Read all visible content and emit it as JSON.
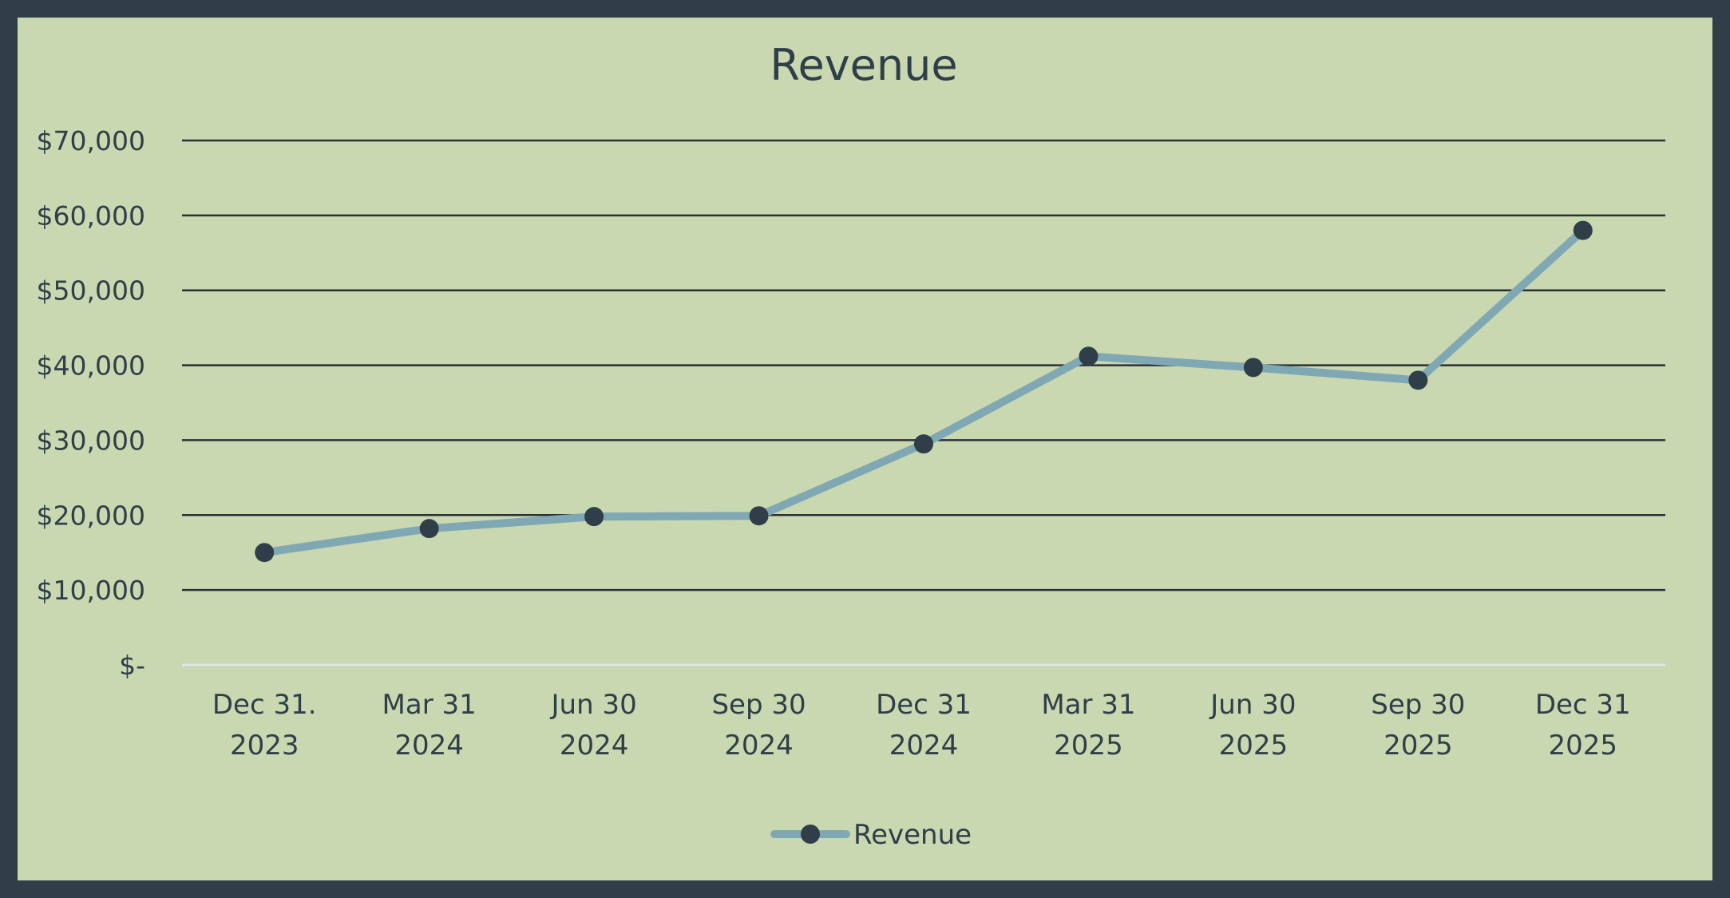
{
  "chart_data": {
    "type": "line",
    "title": "Revenue",
    "xlabel": "",
    "ylabel": "",
    "ylim": [
      0,
      70000
    ],
    "yticks": [
      0,
      10000,
      20000,
      30000,
      40000,
      50000,
      60000,
      70000
    ],
    "ytick_labels": [
      "$-",
      "$10,000",
      "$20,000",
      "$30,000",
      "$40,000",
      "$50,000",
      "$60,000",
      "$70,000"
    ],
    "categories": [
      [
        "Dec 31.",
        "2023"
      ],
      [
        "Mar 31",
        "2024"
      ],
      [
        "Jun 30",
        "2024"
      ],
      [
        "Sep 30",
        "2024"
      ],
      [
        "Dec 31",
        "2024"
      ],
      [
        "Mar 31",
        "2025"
      ],
      [
        "Jun 30",
        "2025"
      ],
      [
        "Sep 30",
        "2025"
      ],
      [
        "Dec 31",
        "2025"
      ]
    ],
    "series": [
      {
        "name": "Revenue",
        "values": [
          15000,
          18200,
          19800,
          19900,
          29500,
          41200,
          39700,
          38000,
          58000
        ]
      }
    ],
    "grid": true,
    "legend": "bottom",
    "colors": {
      "background": "#c9d8b0",
      "frame": "#2f3e48",
      "line": "#7fa8b4",
      "marker": "#2f3e48",
      "grid": "#2b3036",
      "baseline": "#dfe8e6",
      "text": "#2f3e48"
    }
  }
}
